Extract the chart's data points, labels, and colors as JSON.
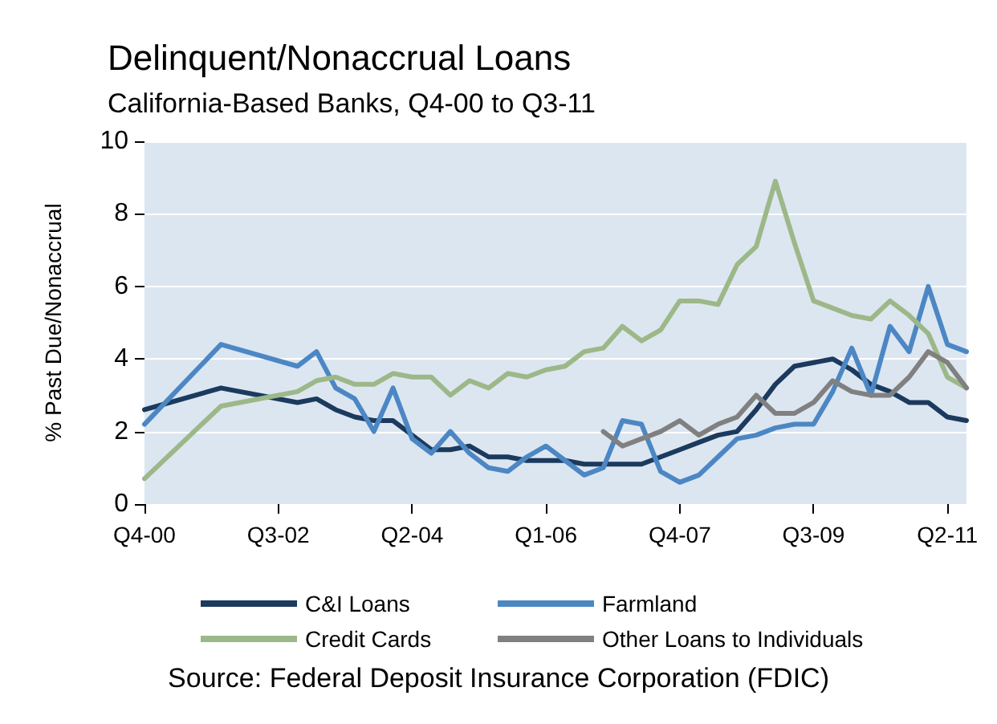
{
  "chart_data": {
    "type": "line",
    "title": "Delinquent/Nonaccrual Loans",
    "subtitle": "California-Based Banks, Q4-00 to Q3-11",
    "ylabel": "% Past Due/Nonaccrual",
    "categories": [
      "Q4-00",
      null,
      null,
      null,
      null,
      null,
      null,
      "Q3-02",
      null,
      null,
      null,
      null,
      null,
      null,
      "Q2-04",
      null,
      null,
      null,
      null,
      null,
      null,
      "Q1-06",
      null,
      null,
      null,
      null,
      null,
      null,
      "Q4-07",
      null,
      null,
      null,
      null,
      null,
      null,
      "Q3-09",
      null,
      null,
      null,
      null,
      null,
      null,
      "Q2-11",
      null
    ],
    "series": [
      {
        "name": "C&I Loans",
        "color": "#1b3a5e",
        "values": [
          2.6,
          null,
          null,
          null,
          3.2,
          null,
          null,
          null,
          2.8,
          2.9,
          2.6,
          2.4,
          2.3,
          2.3,
          1.9,
          1.5,
          1.5,
          1.6,
          1.3,
          1.3,
          1.2,
          1.2,
          1.2,
          1.1,
          1.1,
          1.1,
          1.1,
          1.3,
          1.5,
          1.7,
          1.9,
          2.0,
          2.6,
          3.3,
          3.8,
          3.9,
          4.0,
          3.7,
          3.3,
          3.1,
          2.8,
          2.8,
          2.4,
          2.3
        ]
      },
      {
        "name": "Farmland",
        "color": "#4c87c4",
        "values": [
          2.2,
          null,
          null,
          null,
          4.4,
          null,
          null,
          null,
          3.8,
          4.2,
          3.2,
          2.9,
          2.0,
          3.2,
          1.8,
          1.4,
          2.0,
          1.4,
          1.0,
          0.9,
          1.3,
          1.6,
          1.2,
          0.8,
          1.0,
          2.3,
          2.2,
          0.9,
          0.6,
          0.8,
          1.3,
          1.8,
          1.9,
          2.1,
          2.2,
          2.2,
          3.1,
          4.3,
          3.0,
          4.9,
          4.2,
          6.0,
          4.4,
          4.2
        ]
      },
      {
        "name": "Credit Cards",
        "color": "#9db888",
        "values": [
          0.7,
          null,
          null,
          null,
          2.7,
          null,
          null,
          null,
          3.1,
          3.4,
          3.5,
          3.3,
          3.3,
          3.6,
          3.5,
          3.5,
          3.0,
          3.4,
          3.2,
          3.6,
          3.5,
          3.7,
          3.8,
          4.2,
          4.3,
          4.9,
          4.5,
          4.8,
          5.6,
          5.6,
          5.5,
          6.6,
          7.1,
          8.9,
          7.2,
          5.6,
          5.4,
          5.2,
          5.1,
          5.6,
          5.2,
          4.7,
          3.5,
          3.2
        ]
      },
      {
        "name": "Other Loans to Individuals",
        "color": "#808080",
        "values": [
          null,
          null,
          null,
          null,
          null,
          null,
          null,
          null,
          null,
          null,
          null,
          null,
          null,
          null,
          null,
          null,
          null,
          null,
          null,
          null,
          null,
          null,
          null,
          null,
          2.0,
          1.6,
          1.8,
          2.0,
          2.3,
          1.9,
          2.2,
          2.4,
          3.0,
          2.5,
          2.5,
          2.8,
          3.4,
          3.1,
          3.0,
          3.0,
          3.5,
          4.2,
          3.9,
          3.2
        ]
      }
    ],
    "ylim": [
      0,
      10
    ],
    "yticks": [
      0,
      2,
      4,
      6,
      8,
      10
    ],
    "grid": "y",
    "legend": "bottom",
    "annotations": [
      "Source: Federal Deposit Insurance Corporation (FDIC)"
    ]
  }
}
